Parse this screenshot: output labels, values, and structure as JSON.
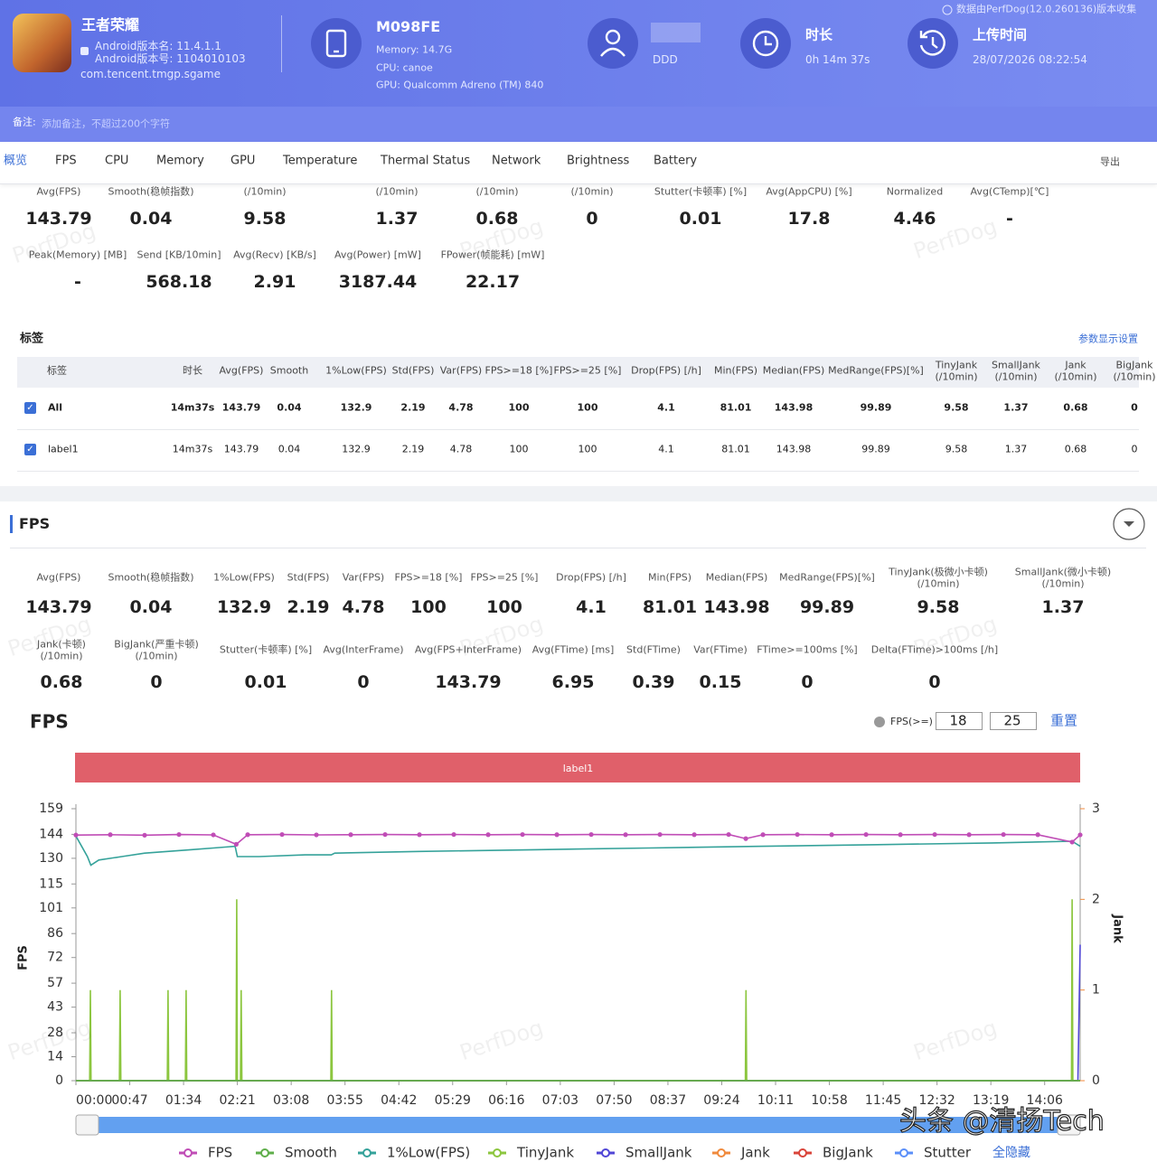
{
  "header": {
    "app_name": "王者荣耀",
    "android_version_name": "Android版本名: 11.4.1.1",
    "android_version_code": "Android版本号: 1104010103",
    "package": "com.tencent.tmgp.sgame",
    "device": "M098FE",
    "memory": "Memory: 14.7G",
    "cpu": "CPU: canoe",
    "gpu": "GPU: Qualcomm Adreno (TM) 840",
    "user": "DDD",
    "duration_label": "时长",
    "duration": "0h 14m 37s",
    "upload_label": "上传时间",
    "upload_time": "28/07/2026 08:22:54",
    "collected_by": "数据由PerfDog(12.0.260136)版本收集"
  },
  "notes": {
    "label": "备注:",
    "placeholder": "添加备注，不超过200个字符"
  },
  "tabs": [
    "概览",
    "FPS",
    "CPU",
    "Memory",
    "GPU",
    "Temperature",
    "Thermal Status",
    "Network",
    "Brightness",
    "Battery"
  ],
  "export": "导出",
  "summary": {
    "rows": [
      [
        {
          "label": "Avg(FPS)",
          "value": "143.79"
        },
        {
          "label": "Smooth(稳帧指数)",
          "value": "0.04"
        },
        {
          "label": "(/10min)",
          "value": "9.58"
        },
        {
          "label": "(/10min)",
          "value": "1.37"
        },
        {
          "label": "(/10min)",
          "value": "0.68"
        },
        {
          "label": "(/10min)",
          "value": "0"
        },
        {
          "label": "Stutter(卡顿率) [%]",
          "value": "0.01"
        },
        {
          "label": "Avg(AppCPU) [%]",
          "value": "17.8"
        },
        {
          "label": "Normalized",
          "value": "4.46"
        },
        {
          "label": "Avg(CTemp)[℃]",
          "value": "-"
        }
      ],
      [
        {
          "label": "Peak(Memory) [MB]",
          "value": "-"
        },
        {
          "label": "Send [KB/10min]",
          "value": "568.18"
        },
        {
          "label": "Avg(Recv) [KB/s]",
          "value": "2.91"
        },
        {
          "label": "Avg(Power) [mW]",
          "value": "3187.44"
        },
        {
          "label": "FPower(帧能耗) [mW]",
          "value": "22.17"
        }
      ]
    ]
  },
  "label_table": {
    "title": "标签",
    "settings": "参数显示设置",
    "header": [
      "标签",
      "时长",
      "Avg(FPS)",
      "Smooth",
      "1%Low(FPS)",
      "Std(FPS)",
      "Var(FPS)",
      "FPS>=18 [%]",
      "FPS>=25 [%]",
      "Drop(FPS) [/h]",
      "Min(FPS)",
      "Median(FPS)",
      "MedRange(FPS)[%]",
      "TinyJank\n(/10min)",
      "SmallJank\n(/10min)",
      "Jank\n(/10min)",
      "BigJank\n(/10min)"
    ],
    "rows": [
      [
        "All",
        "14m37s",
        "143.79",
        "0.04",
        "132.9",
        "2.19",
        "4.78",
        "100",
        "100",
        "4.1",
        "81.01",
        "143.98",
        "99.89",
        "9.58",
        "1.37",
        "0.68",
        "0"
      ],
      [
        "label1",
        "14m37s",
        "143.79",
        "0.04",
        "132.9",
        "2.19",
        "4.78",
        "100",
        "100",
        "4.1",
        "81.01",
        "143.98",
        "99.89",
        "9.58",
        "1.37",
        "0.68",
        "0"
      ]
    ]
  },
  "fps_section": {
    "title": "FPS",
    "rows": [
      [
        {
          "label": "Avg(FPS)",
          "value": "143.79"
        },
        {
          "label": "Smooth(稳帧指数)",
          "value": "0.04"
        },
        {
          "label": "1%Low(FPS)",
          "value": "132.9"
        },
        {
          "label": "Std(FPS)",
          "value": "2.19"
        },
        {
          "label": "Var(FPS)",
          "value": "4.78"
        },
        {
          "label": "FPS>=18 [%]",
          "value": "100"
        },
        {
          "label": "FPS>=25 [%]",
          "value": "100"
        },
        {
          "label": "Drop(FPS) [/h]",
          "value": "4.1"
        },
        {
          "label": "Min(FPS)",
          "value": "81.01"
        },
        {
          "label": "Median(FPS)",
          "value": "143.98"
        },
        {
          "label": "MedRange(FPS)[%]",
          "value": "99.89"
        },
        {
          "label": "TinyJank(极微小卡顿)\n(/10min)",
          "value": "9.58"
        },
        {
          "label": "SmallJank(微小卡顿)\n(/10min)",
          "value": "1.37"
        }
      ],
      [
        {
          "label": "Jank(卡顿)\n(/10min)",
          "value": "0.68"
        },
        {
          "label": "BigJank(严重卡顿)\n(/10min)",
          "value": "0"
        },
        {
          "label": "Stutter(卡顿率) [%]",
          "value": "0.01"
        },
        {
          "label": "Avg(InterFrame)",
          "value": "0"
        },
        {
          "label": "Avg(FPS+InterFrame)",
          "value": "143.79"
        },
        {
          "label": "Avg(FTime) [ms]",
          "value": "6.95"
        },
        {
          "label": "Std(FTime)",
          "value": "0.39"
        },
        {
          "label": "Var(FTime)",
          "value": "0.15"
        },
        {
          "label": "FTime>=100ms [%]",
          "value": "0"
        },
        {
          "label": "Delta(FTime)>100ms [/h]",
          "value": "0"
        }
      ]
    ]
  },
  "watermarks": {
    "perfdog": "PerfDog",
    "overlay": "头条 @清扬Tech"
  },
  "chart_data": {
    "type": "line",
    "title": "FPS",
    "threshold_label": "FPS(>=)",
    "thresholds": [
      18,
      25
    ],
    "reset_label": "重置",
    "band_label": "label1",
    "ylabel": "FPS",
    "y2label": "Jank",
    "xlim": [
      0,
      877
    ],
    "xticks": [
      {
        "value": 0,
        "label": "00:00"
      },
      {
        "value": 47,
        "label": "00:47"
      },
      {
        "value": 94,
        "label": "01:34"
      },
      {
        "value": 141,
        "label": "02:21"
      },
      {
        "value": 188,
        "label": "03:08"
      },
      {
        "value": 235,
        "label": "03:55"
      },
      {
        "value": 282,
        "label": "04:42"
      },
      {
        "value": 329,
        "label": "05:29"
      },
      {
        "value": 376,
        "label": "06:16"
      },
      {
        "value": 423,
        "label": "07:03"
      },
      {
        "value": 470,
        "label": "07:50"
      },
      {
        "value": 517,
        "label": "08:37"
      },
      {
        "value": 564,
        "label": "09:24"
      },
      {
        "value": 611,
        "label": "10:11"
      },
      {
        "value": 658,
        "label": "10:58"
      },
      {
        "value": 705,
        "label": "11:45"
      },
      {
        "value": 752,
        "label": "12:32"
      },
      {
        "value": 799,
        "label": "13:19"
      },
      {
        "value": 846,
        "label": "14:06"
      }
    ],
    "ylim": [
      0,
      159
    ],
    "yticks": [
      0,
      14,
      28,
      43,
      57,
      72,
      86,
      101,
      115,
      130,
      144,
      159
    ],
    "y2lim": [
      0,
      3
    ],
    "y2ticks": [
      0,
      1,
      2,
      3
    ],
    "grid": false,
    "legend": "bottom",
    "hide_all": "全隐藏",
    "series": [
      {
        "name": "FPS",
        "color": "#c04db6",
        "markers": true,
        "x": [
          0,
          30,
          60,
          90,
          120,
          140,
          150,
          180,
          210,
          240,
          270,
          300,
          330,
          360,
          390,
          420,
          450,
          480,
          510,
          540,
          570,
          585,
          600,
          630,
          660,
          690,
          720,
          750,
          780,
          810,
          840,
          870,
          877
        ],
        "values": [
          143.6,
          143.8,
          143.5,
          143.9,
          143.7,
          138.2,
          143.8,
          143.9,
          143.7,
          143.8,
          143.9,
          143.8,
          143.9,
          143.8,
          143.9,
          143.8,
          143.9,
          143.8,
          143.9,
          143.8,
          143.9,
          141.5,
          143.8,
          143.9,
          143.8,
          143.9,
          143.8,
          143.9,
          143.8,
          143.9,
          143.8,
          139.5,
          143.7
        ]
      },
      {
        "name": "Smooth",
        "color": "#5fae4a",
        "x": [
          0,
          877
        ],
        "values": [
          0.04,
          0.04
        ]
      },
      {
        "name": "1%Low(FPS)",
        "color": "#35a29a",
        "x": [
          0,
          10,
          13,
          20,
          40,
          60,
          80,
          100,
          120,
          139,
          141,
          160,
          200,
          223,
          226,
          300,
          400,
          500,
          600,
          700,
          800,
          870,
          877
        ],
        "values": [
          143,
          131,
          126,
          129,
          131,
          133,
          134,
          135,
          136,
          137,
          131,
          131,
          132,
          132,
          133,
          134,
          135,
          136,
          137,
          138,
          139,
          140,
          137
        ]
      },
      {
        "name": "TinyJank",
        "color": "#8cc63f",
        "axis": "y2",
        "x": [
          0,
          12,
          12.6,
          13.2,
          38,
          38.6,
          39.2,
          79.8,
          80.4,
          81,
          95.6,
          96.2,
          96.8,
          139.8,
          140.4,
          141,
          143.7,
          144.3,
          144.9,
          222.6,
          223.2,
          223.8,
          584.6,
          585.2,
          585.8,
          869.4,
          870,
          870.6,
          877
        ],
        "values": [
          0,
          0,
          1,
          0,
          0,
          1,
          0,
          0,
          1,
          0,
          0,
          1,
          0,
          0,
          2,
          0,
          0,
          1,
          0,
          0,
          1,
          0,
          0,
          1,
          0,
          0,
          2,
          0,
          0
        ]
      },
      {
        "name": "SmallJank",
        "color": "#5046d6",
        "axis": "y2",
        "x": [
          0,
          875,
          877
        ],
        "values": [
          0,
          0,
          1.5
        ]
      },
      {
        "name": "Jank",
        "color": "#f08a3c",
        "axis": "y2",
        "x": [
          0,
          877
        ],
        "values": [
          0,
          0
        ]
      },
      {
        "name": "BigJank",
        "color": "#d9443a",
        "axis": "y2",
        "x": [
          0,
          877
        ],
        "values": [
          0,
          0
        ]
      },
      {
        "name": "Stutter",
        "color": "#5b8ff9",
        "axis": "y2",
        "x": [
          0,
          877
        ],
        "values": [
          0,
          0
        ]
      }
    ]
  }
}
